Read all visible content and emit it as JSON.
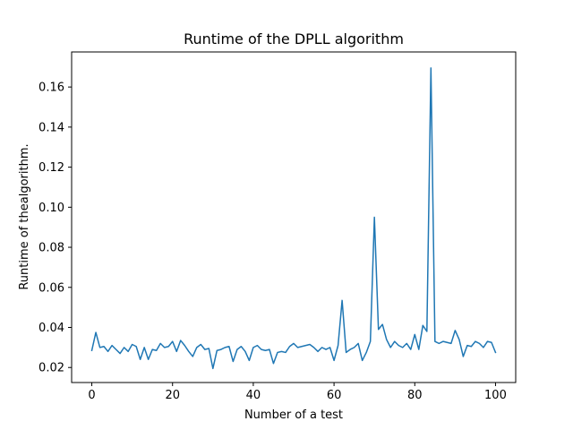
{
  "chart_data": {
    "type": "line",
    "title": "Runtime of the DPLL algorithm",
    "xlabel": "Number of a test",
    "ylabel": "Runtime of thealgorithm.",
    "xlim": [
      -5,
      105
    ],
    "ylim": [
      0.0125,
      0.1775
    ],
    "xticks": [
      0,
      20,
      40,
      60,
      80,
      100
    ],
    "yticks": [
      0.02,
      0.04,
      0.06,
      0.08,
      0.1,
      0.12,
      0.14,
      0.16
    ],
    "xtick_labels": [
      "0",
      "20",
      "40",
      "60",
      "80",
      "100"
    ],
    "ytick_labels": [
      "0.02",
      "0.04",
      "0.06",
      "0.08",
      "0.10",
      "0.12",
      "0.14",
      "0.16"
    ],
    "grid": false,
    "line_color": "#1f77b4",
    "series": [
      {
        "x": [
          0,
          1,
          2,
          3,
          4,
          5,
          6,
          7,
          8,
          9,
          10,
          11,
          12,
          13,
          14,
          15,
          16,
          17,
          18,
          19,
          20,
          21,
          22,
          23,
          24,
          25,
          26,
          27,
          28,
          29,
          30,
          31,
          32,
          33,
          34,
          35,
          36,
          37,
          38,
          39,
          40,
          41,
          42,
          43,
          44,
          45,
          46,
          47,
          48,
          49,
          50,
          51,
          52,
          53,
          54,
          55,
          56,
          57,
          58,
          59,
          60,
          61,
          62,
          63,
          64,
          65,
          66,
          67,
          68,
          69,
          70,
          71,
          72,
          73,
          74,
          75,
          76,
          77,
          78,
          79,
          80,
          81,
          82,
          83,
          84,
          85,
          86,
          87,
          88,
          89,
          90,
          91,
          92,
          93,
          94,
          95,
          96,
          97,
          98,
          99,
          100
        ],
        "values": [
          0.0285,
          0.0375,
          0.03,
          0.0305,
          0.028,
          0.031,
          0.029,
          0.027,
          0.03,
          0.028,
          0.0315,
          0.0305,
          0.024,
          0.03,
          0.024,
          0.029,
          0.0285,
          0.032,
          0.03,
          0.0305,
          0.033,
          0.028,
          0.0335,
          0.031,
          0.028,
          0.0255,
          0.03,
          0.0315,
          0.029,
          0.0295,
          0.0195,
          0.0285,
          0.029,
          0.03,
          0.0305,
          0.023,
          0.029,
          0.0305,
          0.028,
          0.0235,
          0.03,
          0.031,
          0.029,
          0.0285,
          0.029,
          0.022,
          0.0275,
          0.028,
          0.0275,
          0.0305,
          0.032,
          0.03,
          0.0305,
          0.031,
          0.0315,
          0.03,
          0.028,
          0.03,
          0.029,
          0.03,
          0.0235,
          0.031,
          0.0535,
          0.0275,
          0.029,
          0.03,
          0.032,
          0.0235,
          0.0275,
          0.033,
          0.095,
          0.039,
          0.0415,
          0.034,
          0.03,
          0.033,
          0.031,
          0.03,
          0.032,
          0.029,
          0.0365,
          0.029,
          0.041,
          0.038,
          0.1695,
          0.033,
          0.032,
          0.033,
          0.0325,
          0.032,
          0.0385,
          0.034,
          0.0255,
          0.031,
          0.0305,
          0.033,
          0.032,
          0.03,
          0.033,
          0.0325,
          0.0275
        ]
      }
    ]
  }
}
